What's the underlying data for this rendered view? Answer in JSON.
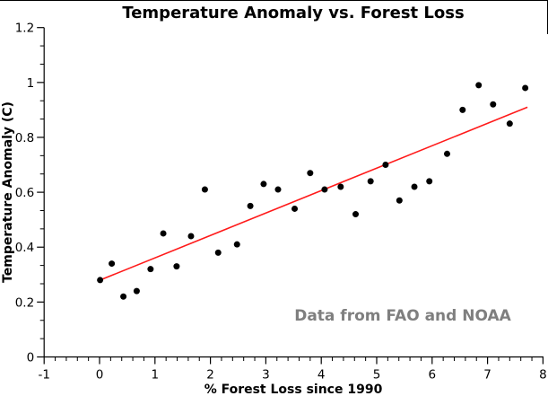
{
  "figure": {
    "title": "Temperature Anomaly vs. Forest Loss"
  },
  "chart_data": {
    "type": "scatter",
    "title": "Temperature Anomaly vs. Forest Loss",
    "xlabel": "% Forest Loss since 1990",
    "ylabel": "Temperature Anomaly (C)",
    "xlim": [
      -1,
      8
    ],
    "ylim": [
      0,
      1.2
    ],
    "x_major_ticks": [
      -1,
      0,
      1,
      2,
      3,
      4,
      5,
      6,
      7,
      8
    ],
    "x_tick_labels": [
      "-1",
      "0",
      "1",
      "2",
      "3",
      "4",
      "5",
      "6",
      "7",
      "8"
    ],
    "x_minor_step": 0.2,
    "y_major_ticks": [
      0,
      0.2,
      0.4,
      0.6,
      0.8,
      1.0,
      1.2
    ],
    "y_tick_labels": [
      "0",
      "0.2",
      "0.4",
      "0.6",
      "0.8",
      "1",
      "1.2"
    ],
    "y_minor_divisions_per_major": 3,
    "grid": false,
    "legend": "none",
    "points": [
      [
        0.01,
        0.28
      ],
      [
        0.22,
        0.34
      ],
      [
        0.43,
        0.22
      ],
      [
        0.67,
        0.24
      ],
      [
        0.92,
        0.32
      ],
      [
        1.15,
        0.45
      ],
      [
        1.39,
        0.33
      ],
      [
        1.65,
        0.44
      ],
      [
        1.9,
        0.61
      ],
      [
        2.14,
        0.38
      ],
      [
        2.48,
        0.41
      ],
      [
        2.72,
        0.55
      ],
      [
        2.96,
        0.63
      ],
      [
        3.22,
        0.61
      ],
      [
        3.52,
        0.54
      ],
      [
        3.8,
        0.67
      ],
      [
        4.06,
        0.61
      ],
      [
        4.35,
        0.62
      ],
      [
        4.62,
        0.52
      ],
      [
        4.89,
        0.64
      ],
      [
        5.16,
        0.7
      ],
      [
        5.41,
        0.57
      ],
      [
        5.68,
        0.62
      ],
      [
        5.95,
        0.64
      ],
      [
        6.27,
        0.74
      ],
      [
        6.55,
        0.9
      ],
      [
        6.84,
        0.99
      ],
      [
        7.1,
        0.92
      ],
      [
        7.4,
        0.85
      ],
      [
        7.68,
        0.98
      ]
    ],
    "trendline": {
      "x1": 0.01,
      "y1": 0.28,
      "x2": 7.72,
      "y2": 0.91
    },
    "annotation": {
      "text": "Data from FAO and NOAA"
    },
    "colors": {
      "points": "#000000",
      "trendline": "#ff1a1a",
      "annotation": "#7f7f7f",
      "axis": "#000000"
    }
  }
}
